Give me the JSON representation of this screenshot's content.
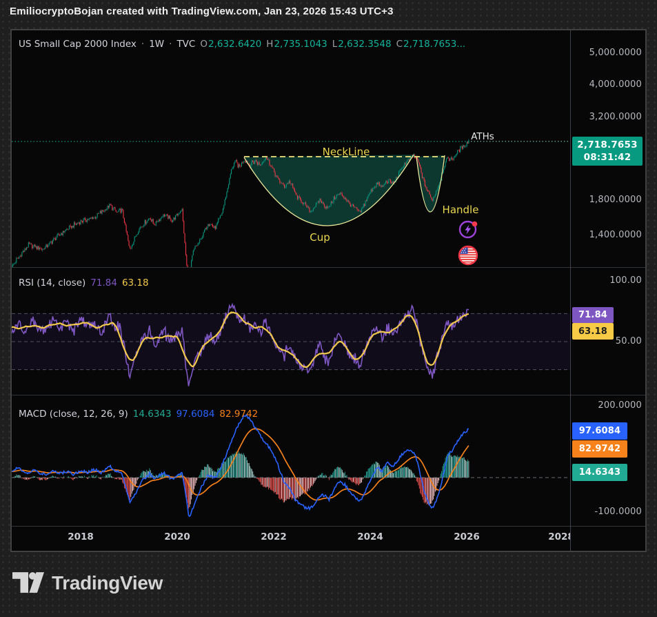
{
  "header": {
    "attribution": "EmiliocryptoBojan created with TradingView.com, Jan 23, 2026 15:43 UTC+3"
  },
  "symbol": {
    "title": "US Small Cap 2000 Index",
    "separator": "·",
    "interval": "1W",
    "exchange": "TVC",
    "o_label": "O",
    "o_value": "2,632.6420",
    "h_label": "H",
    "h_value": "2,735.1043",
    "l_label": "L",
    "l_value": "2,632.3548",
    "c_label": "C",
    "c_value": "2,718.7653..."
  },
  "price_scale": {
    "tick_labels": [
      "5,000.0000",
      "4,000.0000",
      "3,200.0000",
      "1,800.0000",
      "1,400.0000"
    ],
    "badge": {
      "price": "2,718.7653",
      "countdown": "08:31:42",
      "color": "#089981"
    }
  },
  "pattern": {
    "neckline_label": "NeckLine",
    "cup_label": "Cup",
    "handle_label": "Handle",
    "aths_label": "ATHs",
    "label_color": "#e9d64f"
  },
  "rsi": {
    "title": "RSI (14, close)",
    "value_main": "71.84",
    "value_ma": "63.18",
    "tick_top": "100.00",
    "tick_mid": "50.00",
    "badge_main": "71.84",
    "badge_ma": "63.18"
  },
  "macd": {
    "title": "MACD (close, 12, 26, 9)",
    "hist_value": "14.6343",
    "macd_value": "97.6084",
    "signal_value": "82.9742",
    "tick_top": "200.0000",
    "tick_bottom": "-100.0000",
    "badge_macd": "97.6084",
    "badge_signal": "82.9742",
    "badge_hist": "14.6343"
  },
  "time_axis": {
    "labels": [
      "2018",
      "2020",
      "2022",
      "2024",
      "2026",
      "2028"
    ]
  },
  "logo": {
    "text": "TradingView"
  },
  "chart_data": [
    {
      "type": "candlestick",
      "title": "US Small Cap 2000 Index",
      "interval": "1W",
      "exchange": "TVC",
      "open": 2632.642,
      "high": 2735.1043,
      "low": 2632.3548,
      "close": 2718.7653,
      "last_price": 2718.7653,
      "countdown": "08:31:42",
      "scale": "log",
      "y_ticks": [
        5000,
        4000,
        3200,
        1800,
        1400
      ],
      "x_years": [
        2018,
        2020,
        2022,
        2024,
        2026,
        2028
      ],
      "annotations": {
        "neckline_price": 2433,
        "aths_level": 2718.77,
        "cup_x_range_years": [
          2021.8,
          2025.1
        ],
        "handle_x_range_years": [
          2025.2,
          2025.8
        ]
      },
      "colors": {
        "up": "#089981",
        "down": "#f23645",
        "ohlc_text": "#14b39b",
        "ath_line": "#0a9a82",
        "neckline": "#f3e27d",
        "pattern_stroke": "#ece79b",
        "pattern_fill": "rgba(18,97,82,0.55)",
        "price_ext": "#8a8d94"
      },
      "price_anchors": [
        [
          0,
          1140
        ],
        [
          25,
          1320
        ],
        [
          45,
          1280
        ],
        [
          75,
          1445
        ],
        [
          100,
          1555
        ],
        [
          120,
          1595
        ],
        [
          143,
          1735
        ],
        [
          153,
          1640
        ],
        [
          160,
          1690
        ],
        [
          171,
          1275
        ],
        [
          185,
          1480
        ],
        [
          200,
          1590
        ],
        [
          207,
          1520
        ],
        [
          220,
          1625
        ],
        [
          233,
          1565
        ],
        [
          247,
          1690
        ],
        [
          253,
          1190
        ],
        [
          256,
          1010
        ],
        [
          263,
          1260
        ],
        [
          275,
          1380
        ],
        [
          285,
          1540
        ],
        [
          295,
          1480
        ],
        [
          305,
          1650
        ],
        [
          313,
          1950
        ],
        [
          320,
          2280
        ],
        [
          325,
          2350
        ],
        [
          330,
          2260
        ],
        [
          337,
          2400
        ],
        [
          345,
          2300
        ],
        [
          353,
          2360
        ],
        [
          361,
          2290
        ],
        [
          368,
          2445
        ],
        [
          375,
          2310
        ],
        [
          385,
          2090
        ],
        [
          395,
          1980
        ],
        [
          403,
          2060
        ],
        [
          413,
          1850
        ],
        [
          425,
          1745
        ],
        [
          433,
          1660
        ],
        [
          440,
          1725
        ],
        [
          447,
          1800
        ],
        [
          453,
          1735
        ],
        [
          460,
          1705
        ],
        [
          467,
          1815
        ],
        [
          475,
          1885
        ],
        [
          483,
          1825
        ],
        [
          490,
          1755
        ],
        [
          497,
          1705
        ],
        [
          505,
          1645
        ],
        [
          513,
          1785
        ],
        [
          523,
          1950
        ],
        [
          530,
          2020
        ],
        [
          537,
          1965
        ],
        [
          545,
          2065
        ],
        [
          553,
          2015
        ],
        [
          560,
          2125
        ],
        [
          567,
          2270
        ],
        [
          575,
          2380
        ],
        [
          583,
          2445
        ],
        [
          588,
          2390
        ],
        [
          593,
          2220
        ],
        [
          599,
          2010
        ],
        [
          605,
          1885
        ],
        [
          610,
          1800
        ],
        [
          615,
          1905
        ],
        [
          621,
          2040
        ],
        [
          627,
          2290
        ],
        [
          633,
          2415
        ],
        [
          639,
          2385
        ],
        [
          645,
          2480
        ],
        [
          650,
          2560
        ],
        [
          655,
          2620
        ],
        [
          659,
          2665
        ],
        [
          663,
          2718.7653
        ]
      ]
    },
    {
      "type": "line",
      "name": "RSI",
      "params": "14, close",
      "series": [
        {
          "name": "RSI",
          "value": 71.84,
          "color": "#7e57c2"
        },
        {
          "name": "RSI-based MA",
          "value": 63.18,
          "color": "#f2c94c"
        }
      ],
      "levels": [
        70,
        50,
        30
      ],
      "y_ticks": [
        "100.00",
        "50.00"
      ],
      "band_fill": "rgba(124,77,255,0.08)",
      "grid_color": "#50535e",
      "badge_colors": {
        "main": "#7e57c2",
        "ma": "#f7cb45"
      },
      "rsi_anchors": [
        [
          0,
          55
        ],
        [
          10,
          62
        ],
        [
          20,
          58
        ],
        [
          30,
          65
        ],
        [
          40,
          60
        ],
        [
          50,
          57
        ],
        [
          60,
          66
        ],
        [
          70,
          60
        ],
        [
          80,
          64
        ],
        [
          90,
          58
        ],
        [
          100,
          66
        ],
        [
          110,
          60
        ],
        [
          120,
          64
        ],
        [
          130,
          57
        ],
        [
          143,
          68
        ],
        [
          150,
          60
        ],
        [
          157,
          62
        ],
        [
          171,
          27
        ],
        [
          181,
          40
        ],
        [
          190,
          52
        ],
        [
          200,
          58
        ],
        [
          207,
          48
        ],
        [
          220,
          57
        ],
        [
          233,
          50
        ],
        [
          247,
          58
        ],
        [
          253,
          33
        ],
        [
          257,
          17
        ],
        [
          265,
          35
        ],
        [
          275,
          45
        ],
        [
          285,
          55
        ],
        [
          295,
          50
        ],
        [
          305,
          60
        ],
        [
          315,
          72
        ],
        [
          318,
          77
        ],
        [
          323,
          73
        ],
        [
          330,
          64
        ],
        [
          337,
          68
        ],
        [
          345,
          58
        ],
        [
          353,
          63
        ],
        [
          361,
          55
        ],
        [
          368,
          66
        ],
        [
          375,
          55
        ],
        [
          385,
          44
        ],
        [
          395,
          40
        ],
        [
          403,
          48
        ],
        [
          413,
          35
        ],
        [
          425,
          32
        ],
        [
          433,
          28
        ],
        [
          440,
          40
        ],
        [
          447,
          48
        ],
        [
          453,
          40
        ],
        [
          460,
          36
        ],
        [
          467,
          48
        ],
        [
          475,
          54
        ],
        [
          483,
          48
        ],
        [
          490,
          42
        ],
        [
          497,
          38
        ],
        [
          505,
          33
        ],
        [
          513,
          45
        ],
        [
          523,
          55
        ],
        [
          530,
          60
        ],
        [
          537,
          54
        ],
        [
          545,
          60
        ],
        [
          553,
          55
        ],
        [
          560,
          60
        ],
        [
          567,
          66
        ],
        [
          575,
          70
        ],
        [
          583,
          72
        ],
        [
          588,
          62
        ],
        [
          593,
          50
        ],
        [
          599,
          40
        ],
        [
          605,
          30
        ],
        [
          610,
          25
        ],
        [
          615,
          35
        ],
        [
          621,
          45
        ],
        [
          627,
          58
        ],
        [
          633,
          64
        ],
        [
          639,
          60
        ],
        [
          645,
          64
        ],
        [
          650,
          67
        ],
        [
          655,
          68
        ],
        [
          659,
          70
        ],
        [
          663,
          72
        ]
      ]
    },
    {
      "type": "macd",
      "name": "MACD",
      "params": "close, 12, 26, 9",
      "histogram": 14.6343,
      "macd": 97.6084,
      "signal": 82.9742,
      "y_ticks": [
        "200.0000",
        "-100.0000"
      ],
      "colors": {
        "macd_line": "#2962ff",
        "signal_line": "#f7821b",
        "zero_line": "#6b6e76",
        "hist_pos_grow": "#26a69a",
        "hist_pos_fall": "#a8d6d0",
        "hist_neg_grow": "#ef5350",
        "hist_neg_fall": "#f8c3c6",
        "badge_macd": "#2962ff",
        "badge_signal": "#f7821b",
        "badge_hist": "#22ab94"
      },
      "macd_anchors": [
        [
          0,
          12
        ],
        [
          10,
          20
        ],
        [
          20,
          8
        ],
        [
          30,
          15
        ],
        [
          40,
          10
        ],
        [
          50,
          5
        ],
        [
          60,
          14
        ],
        [
          70,
          8
        ],
        [
          80,
          12
        ],
        [
          90,
          6
        ],
        [
          100,
          14
        ],
        [
          110,
          10
        ],
        [
          120,
          16
        ],
        [
          130,
          10
        ],
        [
          143,
          22
        ],
        [
          153,
          12
        ],
        [
          160,
          6
        ],
        [
          171,
          -48
        ],
        [
          181,
          -30
        ],
        [
          190,
          -5
        ],
        [
          200,
          8
        ],
        [
          207,
          -2
        ],
        [
          220,
          10
        ],
        [
          233,
          -4
        ],
        [
          247,
          10
        ],
        [
          253,
          -40
        ],
        [
          257,
          -80
        ],
        [
          265,
          -55
        ],
        [
          275,
          -20
        ],
        [
          285,
          5
        ],
        [
          295,
          -2
        ],
        [
          305,
          25
        ],
        [
          315,
          60
        ],
        [
          323,
          90
        ],
        [
          330,
          110
        ],
        [
          337,
          125
        ],
        [
          340,
          125
        ],
        [
          345,
          118
        ],
        [
          353,
          100
        ],
        [
          361,
          85
        ],
        [
          368,
          70
        ],
        [
          375,
          58
        ],
        [
          385,
          30
        ],
        [
          395,
          -10
        ],
        [
          403,
          -22
        ],
        [
          413,
          -48
        ],
        [
          425,
          -60
        ],
        [
          433,
          -62
        ],
        [
          440,
          -52
        ],
        [
          447,
          -38
        ],
        [
          453,
          -35
        ],
        [
          460,
          -45
        ],
        [
          467,
          -25
        ],
        [
          475,
          -8
        ],
        [
          483,
          -14
        ],
        [
          490,
          -28
        ],
        [
          497,
          -40
        ],
        [
          505,
          -48
        ],
        [
          513,
          -28
        ],
        [
          523,
          2
        ],
        [
          530,
          20
        ],
        [
          537,
          12
        ],
        [
          545,
          30
        ],
        [
          553,
          22
        ],
        [
          560,
          35
        ],
        [
          567,
          48
        ],
        [
          575,
          55
        ],
        [
          583,
          50
        ],
        [
          588,
          35
        ],
        [
          593,
          2
        ],
        [
          599,
          -30
        ],
        [
          605,
          -52
        ],
        [
          610,
          -62
        ],
        [
          615,
          -50
        ],
        [
          621,
          -25
        ],
        [
          627,
          12
        ],
        [
          633,
          45
        ],
        [
          639,
          55
        ],
        [
          645,
          70
        ],
        [
          650,
          80
        ],
        [
          655,
          88
        ],
        [
          659,
          93
        ],
        [
          663,
          97.6
        ]
      ]
    }
  ]
}
